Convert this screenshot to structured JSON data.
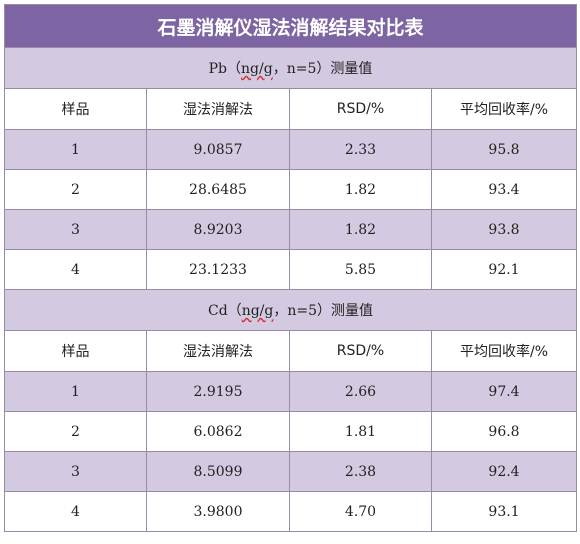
{
  "title": "石墨消解仪湿法消解结果对比表",
  "columns": [
    "样品",
    "湿法消解法",
    "RSD/%",
    "平均回收率/%"
  ],
  "sections": [
    {
      "label_prefix": "Pb（",
      "label_unit": "ng/g",
      "label_suffix": "，n=5）测量值",
      "rows": [
        [
          "1",
          "9.0857",
          "2.33",
          "95.8"
        ],
        [
          "2",
          "28.6485",
          "1.82",
          "93.4"
        ],
        [
          "3",
          "8.9203",
          "1.82",
          "93.8"
        ],
        [
          "4",
          "23.1233",
          "5.85",
          "92.1"
        ]
      ]
    },
    {
      "label_prefix": "Cd（",
      "label_unit": "ng/g",
      "label_suffix": "，n=5）测量值",
      "rows": [
        [
          "1",
          "2.9195",
          "2.66",
          "97.4"
        ],
        [
          "2",
          "6.0862",
          "1.81",
          "96.8"
        ],
        [
          "3",
          "8.5099",
          "2.38",
          "92.4"
        ],
        [
          "4",
          "3.9800",
          "4.70",
          "93.1"
        ]
      ]
    }
  ],
  "colors": {
    "title_bg": "#7d64a2",
    "shade_bg": "#d3c9e0",
    "border": "#9a8aa6"
  }
}
